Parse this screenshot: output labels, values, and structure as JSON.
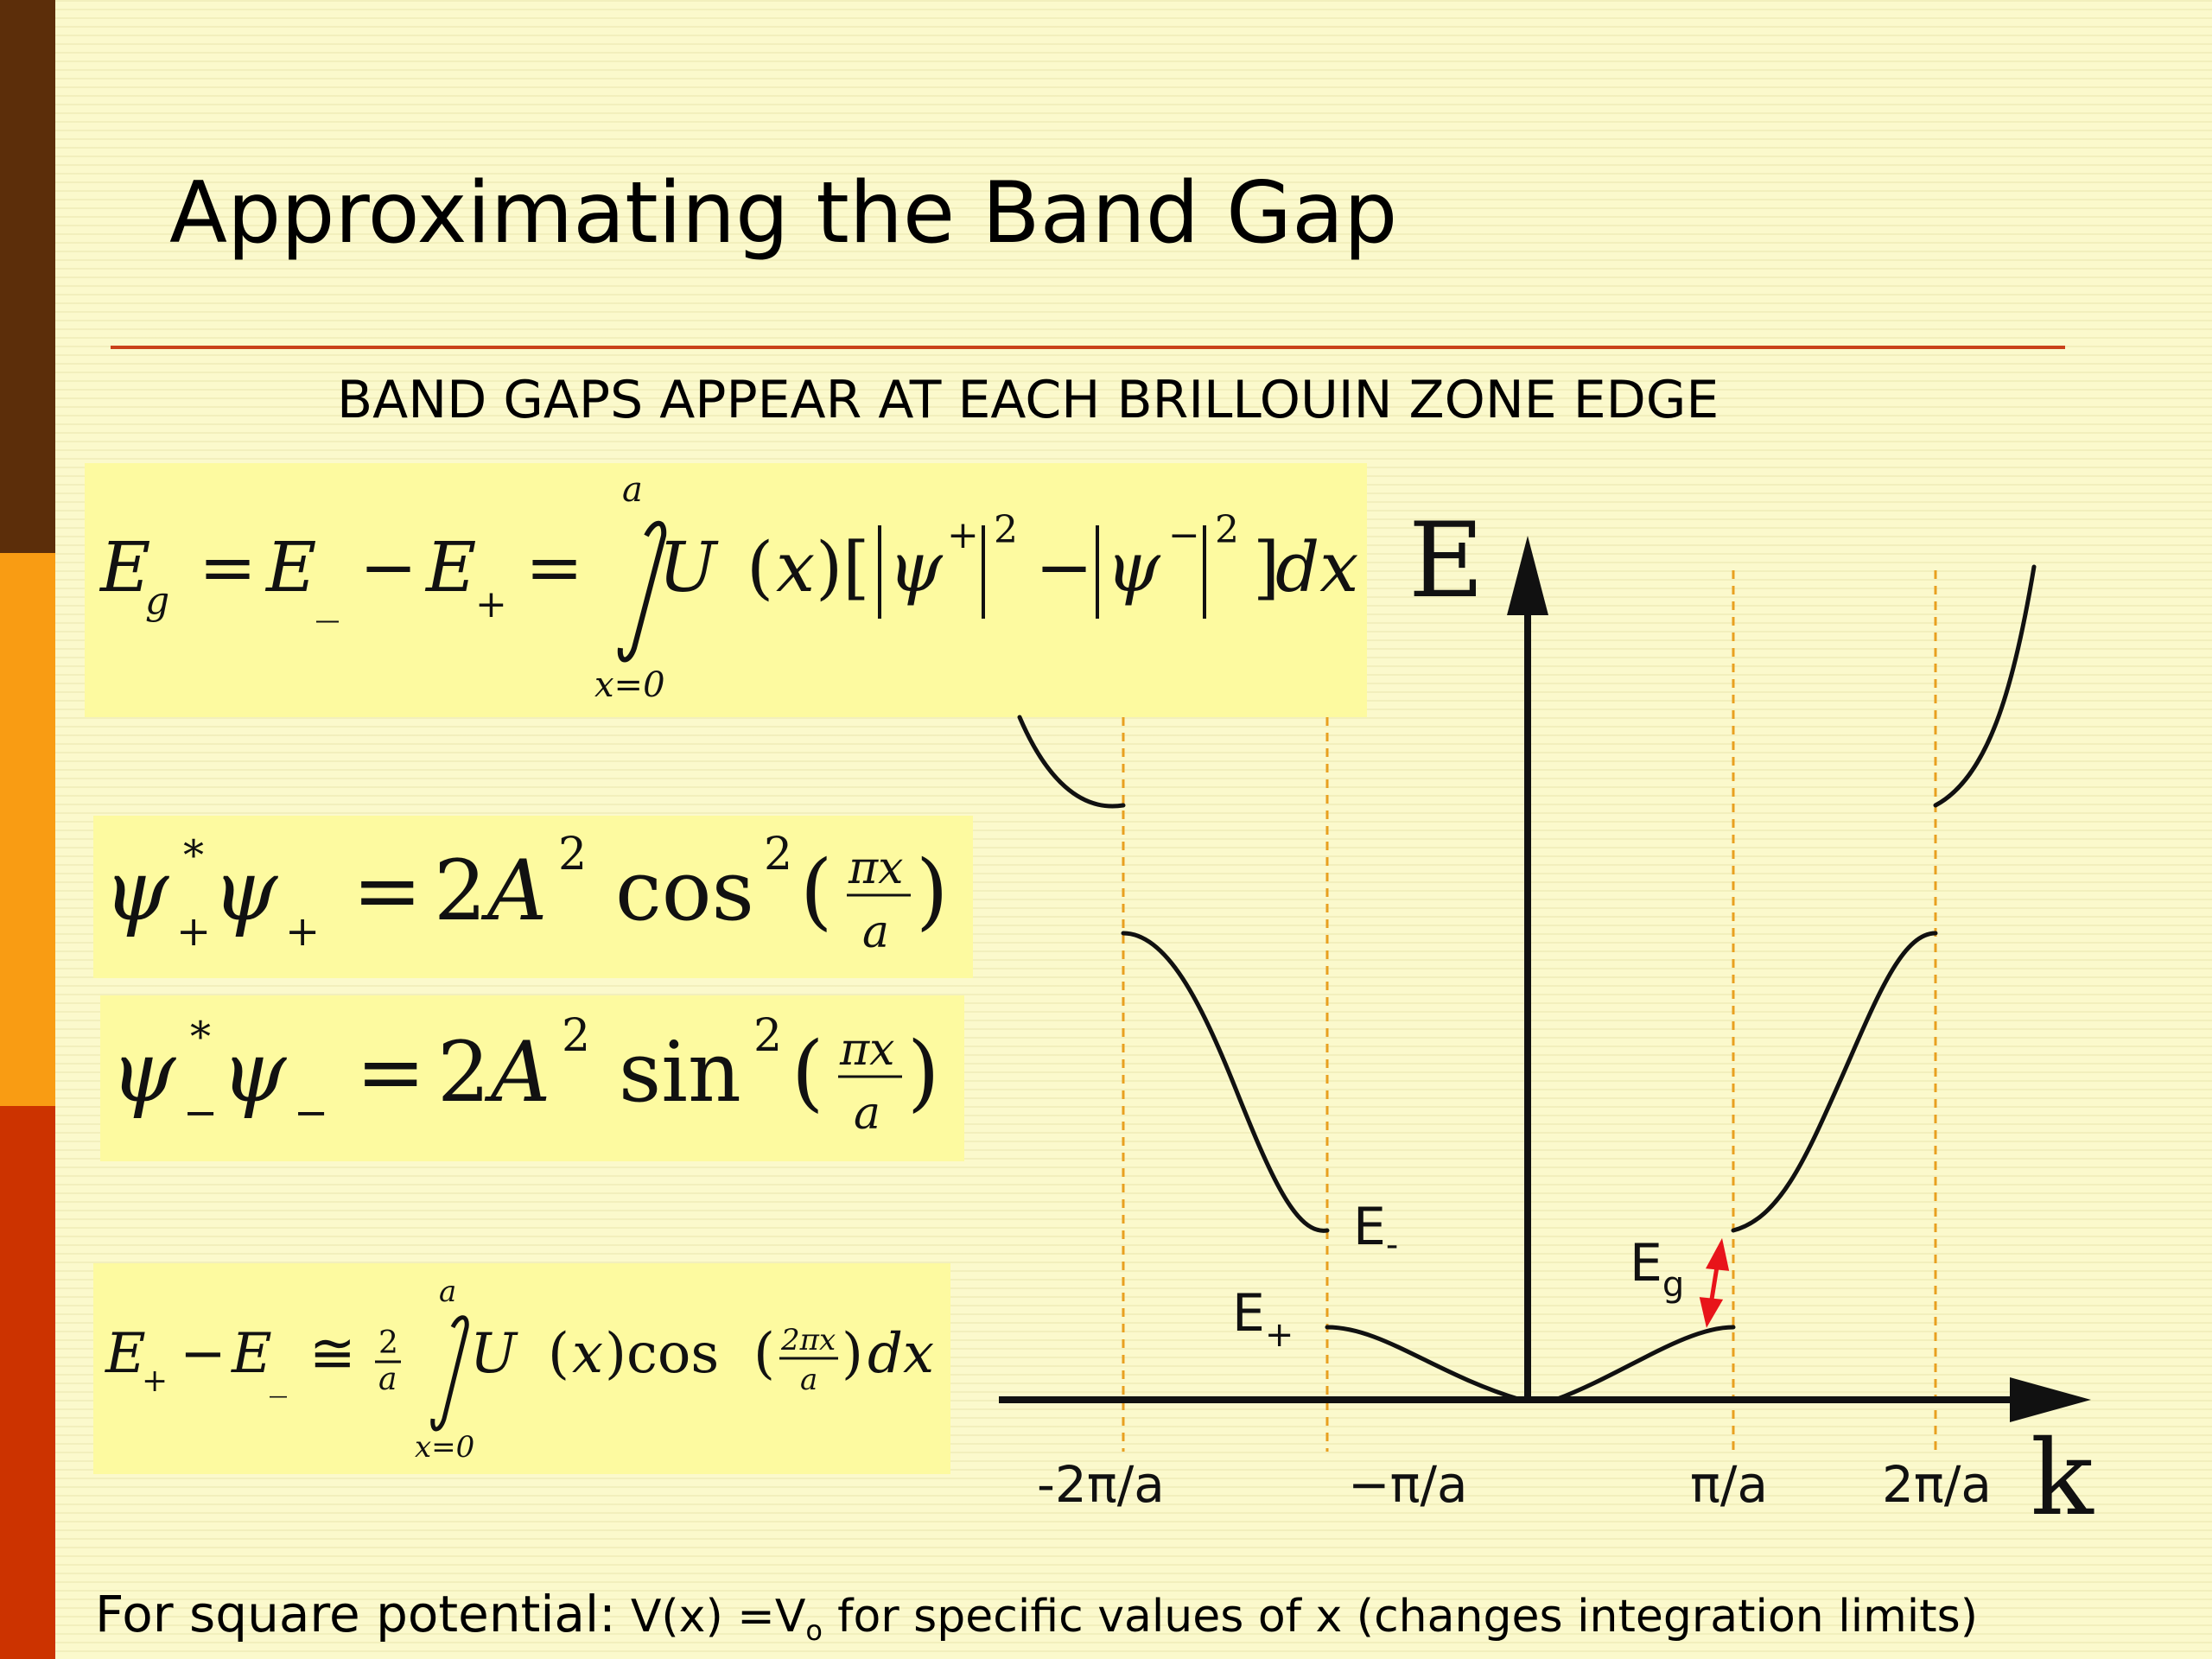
{
  "slide": {
    "title": "Approximating the Band Gap",
    "subtitle": "BAND GAPS APPEAR AT EACH BRILLOUIN ZONE EDGE",
    "colors": {
      "background": "#fbf9cc",
      "sidebar": [
        "#5c2e0a",
        "#f99c13",
        "#cc3300"
      ],
      "rule": "#c9411a",
      "equation_box": "#fdfaa0",
      "gap_arrow": "#e8141a"
    }
  },
  "equations": {
    "band_gap": {
      "lhs": "E_g = E_− − E_+ =",
      "upper_limit": "a",
      "lower_limit": "x=0",
      "integrand": "U(x)[|ψ+|² − |ψ−|²]dx"
    },
    "psi_plus": "ψ*₊ψ₊ = 2A² cos²(πx/a)",
    "psi_minus": "ψ*₋ψ₋ = 2A² sin²(πx/a)",
    "approx": {
      "lhs": "E₊ − E₋ ≅ 2/a",
      "upper_limit": "a",
      "lower_limit": "x=0",
      "integrand": "U(x) cos(2πx/a) dx"
    }
  },
  "graph": {
    "y_axis_label": "E",
    "x_axis_label": "k",
    "tick_labels": [
      "-2π/a",
      "−π/a",
      "π/a",
      "2π/a"
    ],
    "labels": {
      "e_minus": "E",
      "e_minus_sub": "-",
      "e_plus": "E",
      "e_plus_sub": "+",
      "eg": "E",
      "eg_sub": "g"
    }
  },
  "footer": {
    "lead": "For square potential:",
    "v_expr": "V(x) =V",
    "v_sub": "o",
    "tail": "for specific values of x (changes integration limits)"
  }
}
